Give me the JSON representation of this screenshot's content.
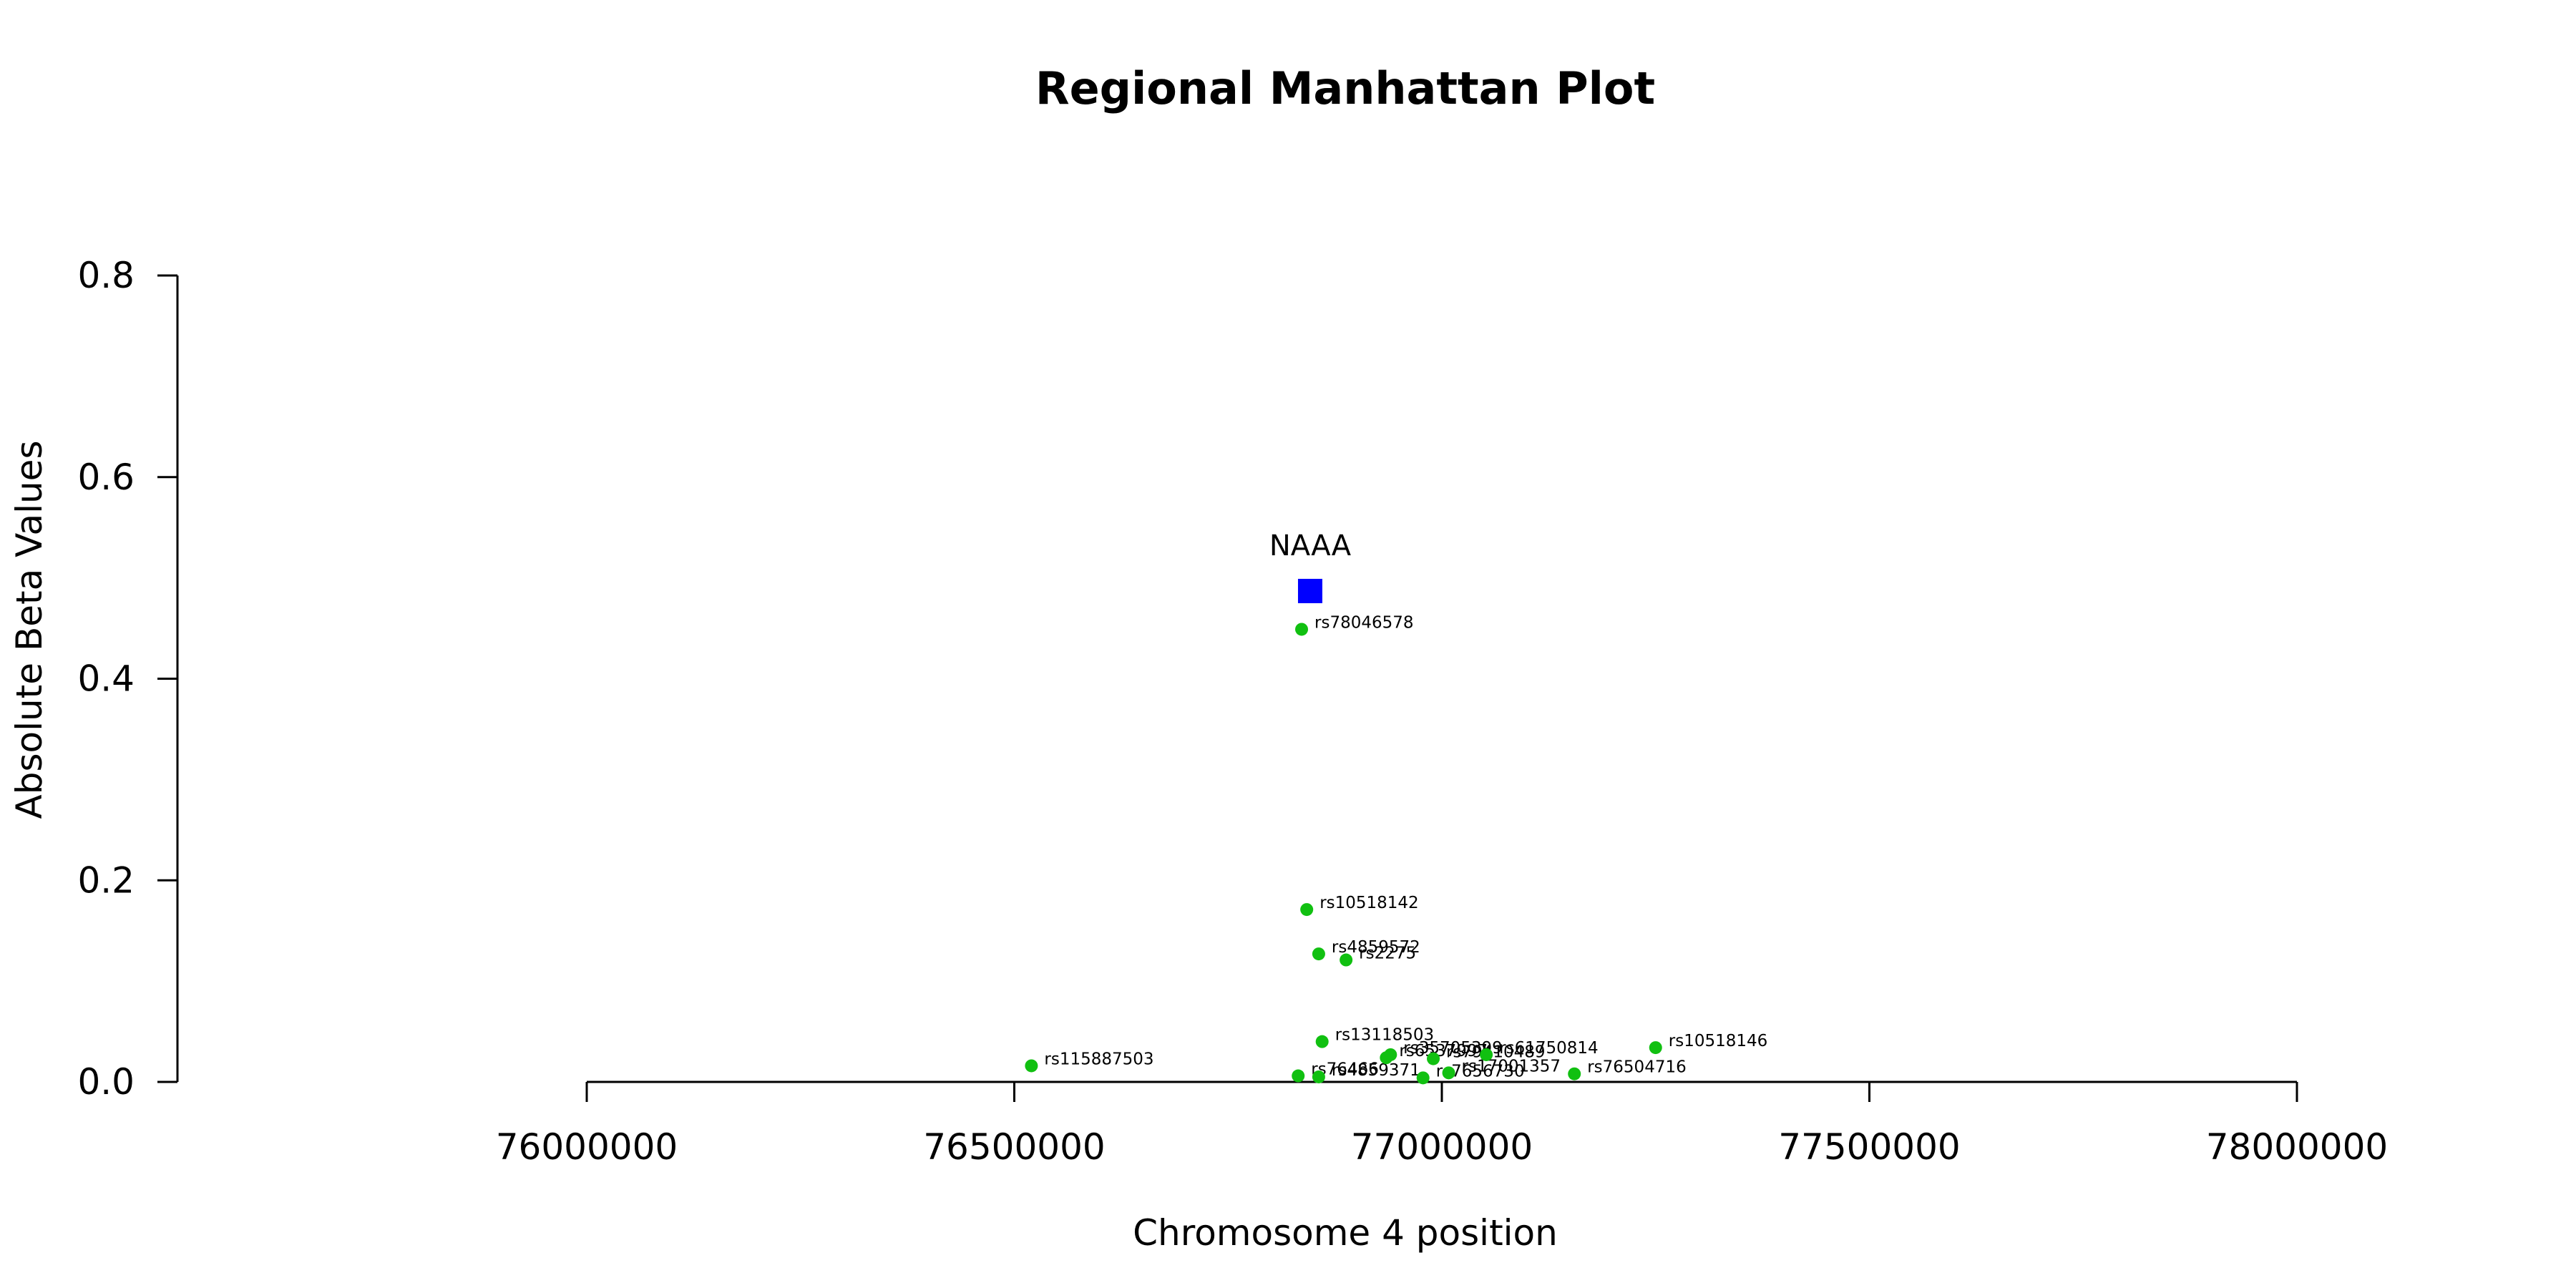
{
  "chart_data": {
    "type": "scatter",
    "title": "Regional Manhattan Plot",
    "xlabel": "Chromosome 4 position",
    "ylabel": "Absolute Beta Values",
    "xlim": [
      76000000,
      78000000
    ],
    "ylim": [
      0,
      0.8
    ],
    "x_ticks": [
      "76000000",
      "76500000",
      "77000000",
      "77500000",
      "78000000"
    ],
    "y_ticks": [
      "0.0",
      "0.2",
      "0.4",
      "0.6",
      "0.8"
    ],
    "grid": false,
    "colors": {
      "snp": "#11c011",
      "gene": "#0000ff"
    },
    "gene": {
      "name": "NAAA",
      "x": 76846000,
      "y": 0.487
    },
    "points": [
      {
        "label": "rs78046578",
        "x": 76836000,
        "y": 0.449
      },
      {
        "label": "rs10518142",
        "x": 76842000,
        "y": 0.171
      },
      {
        "label": "rs4859572",
        "x": 76856000,
        "y": 0.127
      },
      {
        "label": "rs2275",
        "x": 76888000,
        "y": 0.121
      },
      {
        "label": "rs13118503",
        "x": 76860000,
        "y": 0.04
      },
      {
        "label": "rs10518146",
        "x": 77250000,
        "y": 0.034
      },
      {
        "label": "rs115887503",
        "x": 76520000,
        "y": 0.016
      },
      {
        "label": "rs35705399",
        "x": 76940000,
        "y": 0.027
      },
      {
        "label": "rs6537997",
        "x": 76935000,
        "y": 0.024
      },
      {
        "label": "rs79410489",
        "x": 76990000,
        "y": 0.023
      },
      {
        "label": "rs61750814",
        "x": 77052000,
        "y": 0.027
      },
      {
        "label": "rs76504716",
        "x": 77155000,
        "y": 0.008
      },
      {
        "label": "rs17001357",
        "x": 77008000,
        "y": 0.009
      },
      {
        "label": "rs7656730",
        "x": 76978000,
        "y": 0.004
      },
      {
        "label": "rs76466",
        "x": 76832000,
        "y": 0.006
      },
      {
        "label": "rs4859371",
        "x": 76856000,
        "y": 0.005
      }
    ]
  }
}
